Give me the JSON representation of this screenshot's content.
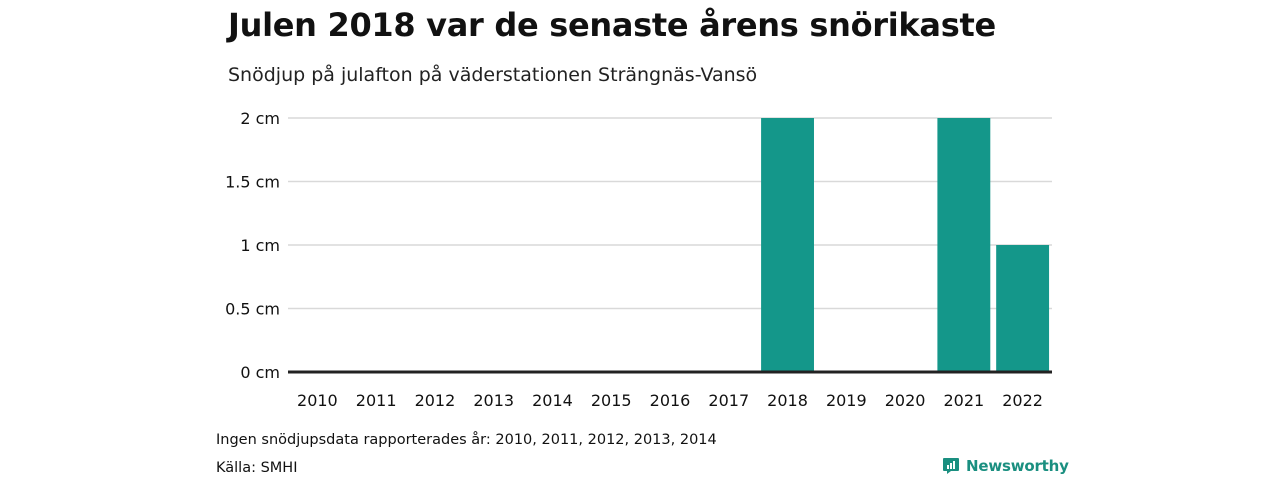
{
  "header": {
    "title": "Julen 2018 var de senaste årens snörikaste",
    "subtitle": "Snödjup på julafton på väderstationen Strängnäs-Vansö"
  },
  "footer": {
    "note": "Ingen snödjupsdata rapporterades år: 2010, 2011, 2012, 2013, 2014",
    "source": "Källa: SMHI",
    "brand": "Newsworthy"
  },
  "colors": {
    "bar": "#14978a",
    "grid": "#d9d9d9",
    "baseline": "#222222",
    "brand": "#1a8f80"
  },
  "chart_data": {
    "type": "bar",
    "categories": [
      "2010",
      "2011",
      "2012",
      "2013",
      "2014",
      "2015",
      "2016",
      "2017",
      "2018",
      "2019",
      "2020",
      "2021",
      "2022"
    ],
    "values": [
      0,
      0,
      0,
      0,
      0,
      0,
      0,
      0,
      2,
      0,
      0,
      2,
      1
    ],
    "ylim": [
      0,
      2
    ],
    "yticks": [
      0,
      0.5,
      1,
      1.5,
      2
    ],
    "ytick_labels": [
      "0 cm",
      "0.5 cm",
      "1 cm",
      "1.5 cm",
      "2 cm"
    ],
    "title": "Julen 2018 var de senaste årens snörikaste",
    "xlabel": "",
    "ylabel": "",
    "grid": true,
    "legend": "none"
  }
}
